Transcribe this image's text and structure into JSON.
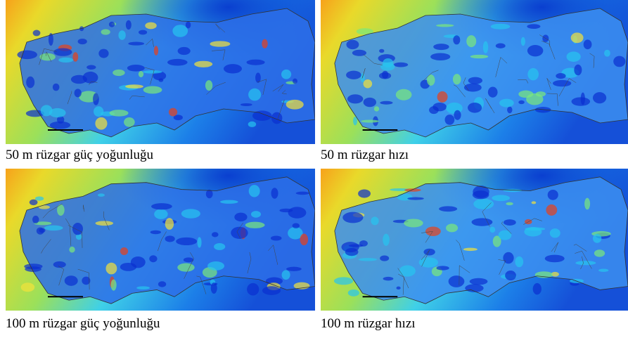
{
  "panels": [
    {
      "caption": "50 m rüzgar güç yoğunluğu"
    },
    {
      "caption": "50 m rüzgar hızı"
    },
    {
      "caption": "100 m rüzgar güç yoğunluğu"
    },
    {
      "caption": "100 m rüzgar hızı"
    }
  ]
}
